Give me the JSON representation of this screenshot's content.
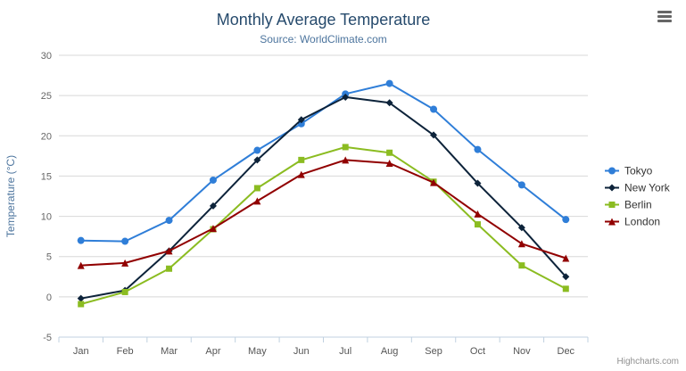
{
  "chart_data": {
    "type": "line",
    "title": "Monthly Average Temperature",
    "subtitle": "Source: WorldClimate.com",
    "xlabel": "",
    "ylabel": "Temperature (°C)",
    "ylim": [
      -5,
      30
    ],
    "ytick_step": 5,
    "grid": true,
    "legend_position": "right",
    "categories": [
      "Jan",
      "Feb",
      "Mar",
      "Apr",
      "May",
      "Jun",
      "Jul",
      "Aug",
      "Sep",
      "Oct",
      "Nov",
      "Dec"
    ],
    "series": [
      {
        "name": "Tokyo",
        "color": "#2f7ed8",
        "marker": "circle",
        "values": [
          7.0,
          6.9,
          9.5,
          14.5,
          18.2,
          21.5,
          25.2,
          26.5,
          23.3,
          18.3,
          13.9,
          9.6
        ]
      },
      {
        "name": "New York",
        "color": "#0d233a",
        "marker": "diamond",
        "values": [
          -0.2,
          0.8,
          5.7,
          11.3,
          17.0,
          22.0,
          24.8,
          24.1,
          20.1,
          14.1,
          8.6,
          2.5
        ]
      },
      {
        "name": "Berlin",
        "color": "#8bbc21",
        "marker": "square",
        "values": [
          -0.9,
          0.6,
          3.5,
          8.4,
          13.5,
          17.0,
          18.6,
          17.9,
          14.3,
          9.0,
          3.9,
          1.0
        ]
      },
      {
        "name": "London",
        "color": "#910000",
        "marker": "triangle",
        "values": [
          3.9,
          4.2,
          5.7,
          8.5,
          11.9,
          15.2,
          17.0,
          16.6,
          14.2,
          10.3,
          6.6,
          4.8
        ]
      }
    ]
  },
  "credit": "Highcharts.com",
  "colors": {
    "title": "#274b6d",
    "subtitle": "#4d759e",
    "axis_title": "#4d759e",
    "axis_label": "#666666",
    "x_label": "#555555",
    "grid": "#d8d8d8",
    "axis_line": "#c0d0e0",
    "legend_text": "#333333"
  }
}
